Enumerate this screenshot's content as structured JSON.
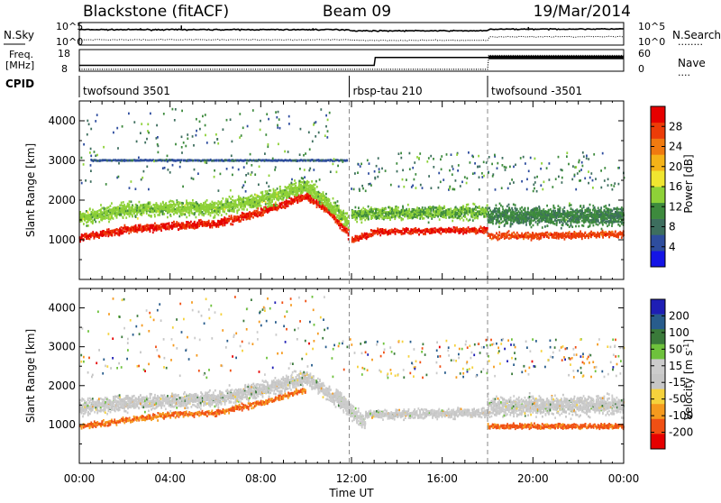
{
  "header": {
    "station": "Blackstone (fitACF)",
    "beam": "Beam 09",
    "date": "19/Mar/2014"
  },
  "params": {
    "nsky_label": "N.Sky",
    "nsearch_label": "N.Search",
    "nsearch_line": "........",
    "freq_label_1": "Freq.",
    "freq_label_2": "[MHz]",
    "nave_label": "Nave",
    "nave_line": "....",
    "cpid_label": "CPID",
    "noise_ticks": [
      "10^5",
      "10^0"
    ],
    "freq_ticks": [
      "18",
      "8"
    ],
    "nave_ticks": [
      "60",
      "0"
    ]
  },
  "cpid_segments": [
    {
      "name": "twofsound 3501",
      "start_h": 0,
      "end_h": 11.9
    },
    {
      "name": "rbsp-tau 210",
      "start_h": 11.9,
      "end_h": 18.0
    },
    {
      "name": "twofsound -3501",
      "start_h": 18.0,
      "end_h": 24
    }
  ],
  "axes": {
    "xlabel": "Time UT",
    "x_ticks": [
      "00:00",
      "04:00",
      "08:00",
      "12:00",
      "16:00",
      "20:00",
      "00:00"
    ],
    "y_label": "Slant Range [km]",
    "y_ticks": [
      "1000",
      "2000",
      "3000",
      "4000"
    ],
    "power_label": "Power [dB]",
    "power_ticks": [
      "4",
      "8",
      "12",
      "16",
      "20",
      "24",
      "28"
    ],
    "velocity_label": "Velocity [m s",
    "velocity_label_sup": "-1",
    "velocity_label_end": "]",
    "velocity_ticks": [
      "200",
      "100",
      "50",
      "15",
      "-15",
      "-50",
      "-100",
      "-200"
    ]
  },
  "colors": {
    "power": [
      "#1414e6",
      "#2e4d9e",
      "#3d6e5e",
      "#3d8a3d",
      "#8ed138",
      "#f0e630",
      "#f5b318",
      "#f07a10",
      "#ec3c08",
      "#e60000"
    ],
    "velocity": [
      "#1e1eb4",
      "#285c8c",
      "#3a7a3a",
      "#6ec23c",
      "#cccccc",
      "#c6c6c6",
      "#f5d23c",
      "#f59a1e",
      "#f05014",
      "#e60000"
    ]
  },
  "chart_data": [
    {
      "type": "line",
      "name": "noise",
      "x_range": [
        0,
        24
      ],
      "y_scale": "log",
      "ylim": [
        1,
        100000
      ],
      "series": [
        {
          "name": "N.Sky",
          "x": [
            0,
            6,
            11.9,
            12,
            18,
            18.1,
            24
          ],
          "y": [
            4000,
            4000,
            4000,
            2000,
            2000,
            5000,
            6000
          ]
        },
        {
          "name": "N.Search",
          "x": [
            0,
            6,
            11.9,
            12,
            18,
            18.1,
            24
          ],
          "y": [
            8,
            9,
            8,
            6,
            6,
            50,
            60
          ]
        }
      ]
    },
    {
      "type": "line",
      "name": "frequency_nave",
      "x_range": [
        0,
        24
      ],
      "series": [
        {
          "name": "Freq.",
          "x": [
            0,
            11.9,
            12,
            13,
            13.05,
            18,
            18.05,
            24
          ],
          "y": [
            10.5,
            10.5,
            10.5,
            10.5,
            14.5,
            14.5,
            14.5,
            14.5
          ]
        },
        {
          "name": "Nave",
          "x": [
            0,
            11.9,
            12,
            18,
            18.05,
            24
          ],
          "y": [
            3,
            3,
            3,
            3,
            45,
            45
          ]
        }
      ]
    },
    {
      "type": "heatmap",
      "name": "power",
      "x_range": [
        0,
        24
      ],
      "ylim": [
        0,
        4500
      ],
      "zlim": [
        0,
        32
      ],
      "bands": [
        {
          "x": [
            0,
            2,
            4,
            6,
            8,
            10,
            11,
            11.9
          ],
          "center": [
            1050,
            1250,
            1350,
            1400,
            1700,
            2100,
            1700,
            1100
          ],
          "width": 260,
          "value": 29
        },
        {
          "x": [
            0,
            2,
            4,
            6,
            8,
            10,
            11,
            11.9
          ],
          "center": [
            1550,
            1750,
            1800,
            1800,
            2000,
            2350,
            1900,
            1400
          ],
          "width": 500,
          "value": 14
        },
        {
          "x": [
            12,
            12.6,
            13,
            18
          ],
          "center": [
            1000,
            1100,
            1200,
            1250
          ],
          "width": 220,
          "value": 29
        },
        {
          "x": [
            12,
            18
          ],
          "center": [
            1650,
            1700
          ],
          "width": 450,
          "value": 13
        },
        {
          "x": [
            18,
            20,
            22,
            24
          ],
          "center": [
            1100,
            1100,
            1120,
            1150
          ],
          "width": 230,
          "value": 27
        },
        {
          "x": [
            18,
            24
          ],
          "center": [
            1600,
            1600
          ],
          "width": 650,
          "value": 10
        },
        {
          "x": [
            0.5,
            11.8
          ],
          "center": [
            3000,
            3000
          ],
          "width": 40,
          "value": 6
        }
      ]
    },
    {
      "type": "heatmap",
      "name": "velocity",
      "x_range": [
        0,
        24
      ],
      "ylim": [
        0,
        4500
      ],
      "zlim": [
        -250,
        250
      ],
      "bands": [
        {
          "x": [
            0,
            2,
            4,
            6,
            8,
            10,
            11.9
          ],
          "center": [
            1450,
            1550,
            1600,
            1650,
            1900,
            2200,
            1400
          ],
          "width": 520,
          "value": 0
        },
        {
          "x": [
            0,
            2,
            4,
            6,
            8,
            10
          ],
          "center": [
            950,
            1100,
            1250,
            1300,
            1550,
            1900
          ],
          "width": 200,
          "value": -150
        },
        {
          "x": [
            11.3,
            12,
            12.6
          ],
          "center": [
            1800,
            1300,
            1000
          ],
          "width": 500,
          "value": 30
        },
        {
          "x": [
            12.6,
            18
          ],
          "center": [
            1250,
            1300
          ],
          "width": 320,
          "value": 0
        },
        {
          "x": [
            18,
            24
          ],
          "center": [
            1450,
            1500
          ],
          "width": 650,
          "value": 0
        },
        {
          "x": [
            18,
            24
          ],
          "center": [
            950,
            950
          ],
          "width": 180,
          "value": -160
        }
      ]
    }
  ]
}
